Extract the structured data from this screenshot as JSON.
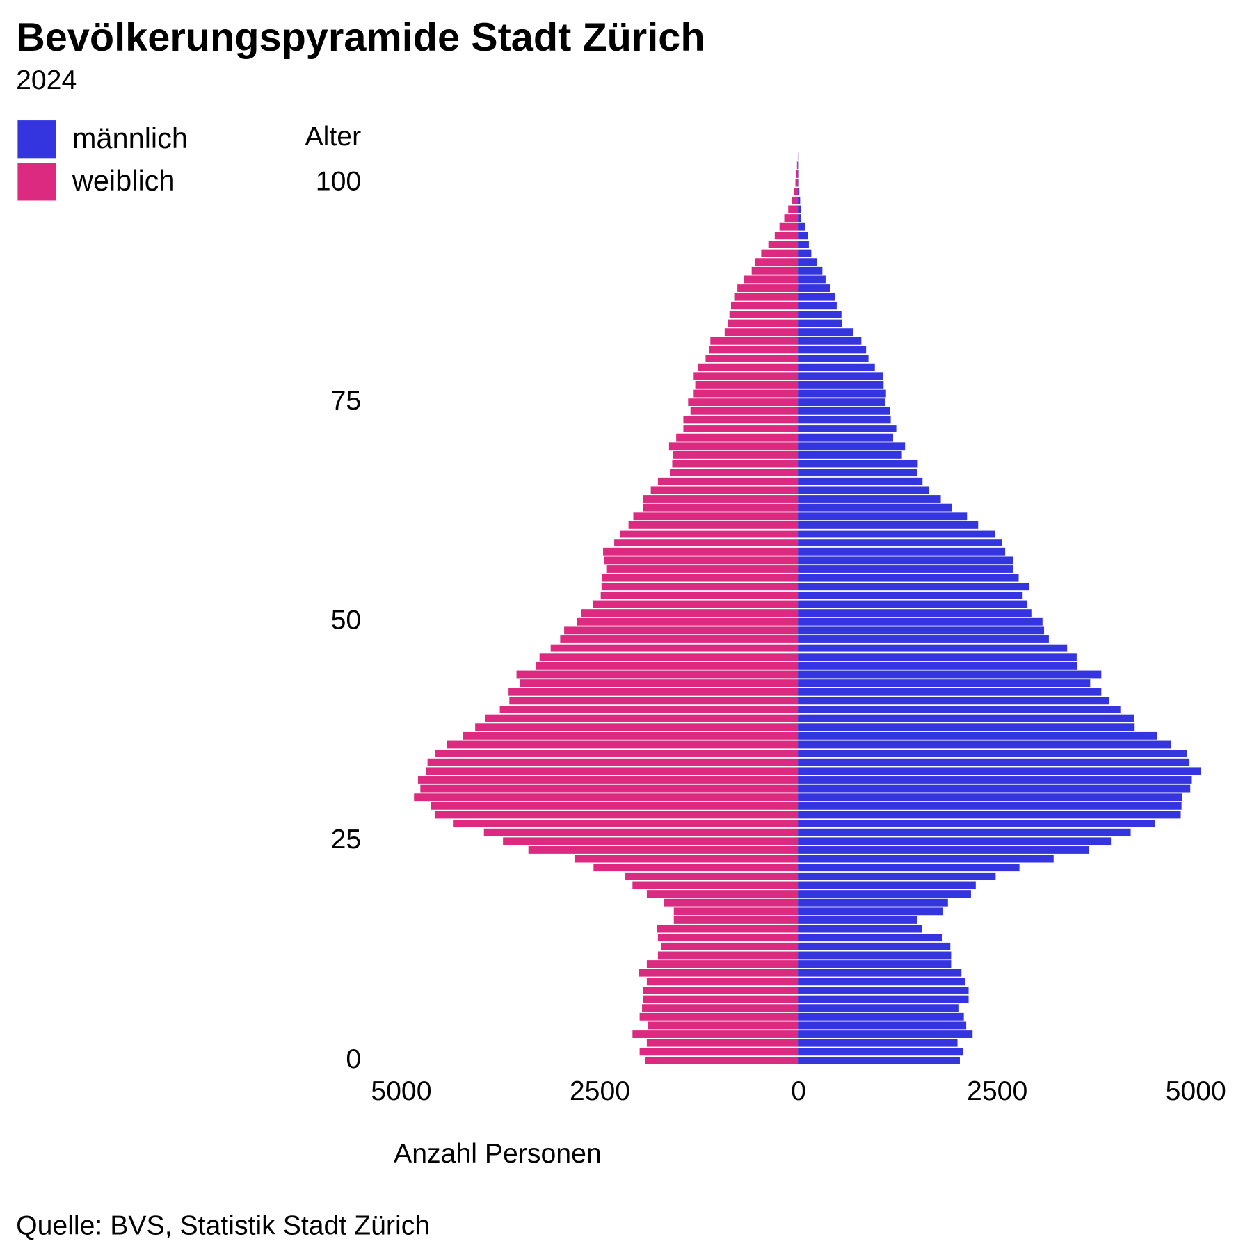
{
  "chart_data": {
    "type": "pyramid",
    "title": "Bevölkerungspyramide Stadt Zürich",
    "subtitle": "2024",
    "y_label": "Alter",
    "x_label": "Anzahl Personen",
    "source": "Quelle: BVS, Statistik Stadt Zürich",
    "y": [
      0,
      1,
      2,
      3,
      4,
      5,
      6,
      7,
      8,
      9,
      10,
      11,
      12,
      13,
      14,
      15,
      16,
      17,
      18,
      19,
      20,
      21,
      22,
      23,
      24,
      25,
      26,
      27,
      28,
      29,
      30,
      31,
      32,
      33,
      34,
      35,
      36,
      37,
      38,
      39,
      40,
      41,
      42,
      43,
      44,
      45,
      46,
      47,
      48,
      49,
      50,
      51,
      52,
      53,
      54,
      55,
      56,
      57,
      58,
      59,
      60,
      61,
      62,
      63,
      64,
      65,
      66,
      67,
      68,
      69,
      70,
      71,
      72,
      73,
      74,
      75,
      76,
      77,
      78,
      79,
      80,
      81,
      82,
      83,
      84,
      85,
      86,
      87,
      88,
      89,
      90,
      91,
      92,
      93,
      94,
      95,
      96,
      97,
      98,
      99,
      100,
      101,
      102,
      103
    ],
    "series": [
      {
        "name": "männlich",
        "color": "#3535e0",
        "side": "right",
        "values": [
          2030,
          2070,
          2000,
          2190,
          2110,
          2080,
          2020,
          2140,
          2140,
          2100,
          2050,
          1920,
          1920,
          1910,
          1810,
          1550,
          1490,
          1820,
          1880,
          2170,
          2230,
          2480,
          2780,
          3210,
          3650,
          3940,
          4180,
          4490,
          4810,
          4820,
          4830,
          4930,
          4950,
          5060,
          4920,
          4890,
          4690,
          4510,
          4230,
          4220,
          4050,
          3910,
          3810,
          3670,
          3810,
          3510,
          3500,
          3380,
          3150,
          3090,
          3070,
          2930,
          2880,
          2820,
          2900,
          2770,
          2700,
          2700,
          2600,
          2560,
          2470,
          2260,
          2120,
          1930,
          1790,
          1640,
          1560,
          1490,
          1500,
          1300,
          1340,
          1190,
          1230,
          1160,
          1150,
          1090,
          1100,
          1070,
          1060,
          960,
          880,
          850,
          790,
          690,
          550,
          540,
          480,
          460,
          400,
          340,
          300,
          230,
          160,
          130,
          120,
          80,
          30,
          30,
          20,
          10,
          5,
          5,
          3,
          2
        ]
      },
      {
        "name": "weiblich",
        "color": "#dc2a80",
        "side": "left",
        "values": [
          1930,
          2000,
          1910,
          2090,
          1900,
          2000,
          1970,
          1960,
          1960,
          1910,
          2010,
          1910,
          1770,
          1730,
          1770,
          1780,
          1570,
          1570,
          1690,
          1910,
          2090,
          2180,
          2580,
          2820,
          3400,
          3720,
          3960,
          4350,
          4580,
          4630,
          4840,
          4760,
          4790,
          4690,
          4670,
          4570,
          4430,
          4220,
          4070,
          3940,
          3760,
          3640,
          3650,
          3510,
          3550,
          3310,
          3260,
          3120,
          3000,
          2950,
          2790,
          2740,
          2590,
          2490,
          2480,
          2470,
          2420,
          2450,
          2460,
          2320,
          2250,
          2140,
          2080,
          1960,
          1960,
          1860,
          1770,
          1620,
          1590,
          1580,
          1630,
          1540,
          1450,
          1450,
          1360,
          1390,
          1320,
          1300,
          1320,
          1270,
          1170,
          1130,
          1110,
          930,
          890,
          870,
          850,
          810,
          770,
          690,
          590,
          550,
          470,
          380,
          300,
          240,
          180,
          130,
          80,
          60,
          40,
          30,
          20,
          10
        ]
      }
    ],
    "xlim": [
      -5000,
      5000
    ],
    "xticks": [
      {
        "value": -5000,
        "label": "5000"
      },
      {
        "value": -2500,
        "label": "2500"
      },
      0,
      2500,
      5000
    ],
    "ylim": [
      -0.5,
      103.5
    ],
    "yticks": [
      0,
      25,
      50,
      75,
      100
    ],
    "grid": false
  }
}
